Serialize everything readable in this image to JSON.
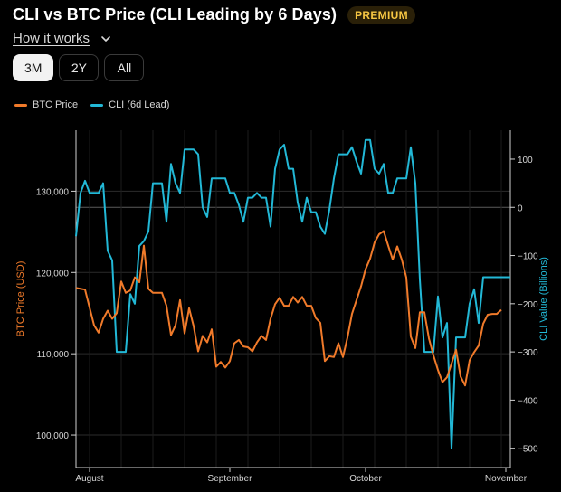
{
  "header": {
    "title": "CLI vs BTC Price (CLI Leading by 6 Days)",
    "badge": "PREMIUM",
    "how_it_works": "How it works"
  },
  "range": {
    "options": [
      "3M",
      "2Y",
      "All"
    ],
    "selected": "3M"
  },
  "colors": {
    "btc": "#f07a2a",
    "cli": "#22b8d6",
    "grid": "#2b2b2b",
    "axis": "#d0d0d0",
    "zero_line": "#5a5a5a"
  },
  "chart_data": {
    "type": "line",
    "title": "CLI vs BTC Price (CLI Leading by 6 Days)",
    "x_unit": "days since Jul 29",
    "x_ticks": [
      {
        "label": "August",
        "x": 3
      },
      {
        "label": "September",
        "x": 34
      },
      {
        "label": "October",
        "x": 64
      },
      {
        "label": "November",
        "x": 95
      }
    ],
    "xlim": [
      0,
      96
    ],
    "left_axis": {
      "label": "BTC Price (USD)",
      "ylim": [
        96000,
        137500
      ],
      "ticks": [
        100000,
        110000,
        120000,
        130000
      ],
      "tick_labels": [
        "100,000",
        "110,000",
        "120,000",
        "130,000"
      ]
    },
    "right_axis": {
      "label": "CLI Value (Billions)",
      "ylim": [
        -540,
        160
      ],
      "ticks": [
        -500,
        -400,
        -300,
        -200,
        -100,
        0,
        100
      ],
      "tick_labels": [
        "−500",
        "−400",
        "−300",
        "−200",
        "−100",
        "0",
        "100"
      ]
    },
    "series": [
      {
        "name": "BTC Price",
        "axis": "left",
        "x": [
          0,
          2,
          4,
          5,
          6,
          7,
          8,
          9,
          10,
          11,
          12,
          13,
          14,
          15,
          16,
          17,
          18,
          19,
          20,
          21,
          22,
          23,
          24,
          25,
          26,
          27,
          28,
          29,
          30,
          31,
          32,
          33,
          34,
          35,
          36,
          37,
          38,
          39,
          40,
          41,
          42,
          43,
          44,
          45,
          46,
          47,
          48,
          49,
          50,
          51,
          52,
          53,
          54,
          55,
          56,
          57,
          58,
          59,
          60,
          61,
          62,
          63,
          64,
          65,
          66,
          67,
          68,
          69,
          70,
          71,
          72,
          73,
          74,
          75,
          76,
          77,
          78,
          79,
          80,
          81,
          82,
          83,
          84,
          85,
          86,
          87,
          88,
          89,
          90,
          91,
          92,
          93,
          94
        ],
        "values": [
          118100,
          117900,
          113500,
          112600,
          114300,
          115300,
          114300,
          115000,
          118900,
          117500,
          117800,
          119400,
          118800,
          123300,
          118000,
          117500,
          117500,
          117500,
          115900,
          112300,
          113500,
          116600,
          112500,
          115600,
          113400,
          110300,
          112200,
          111400,
          113000,
          108400,
          109000,
          108300,
          109100,
          111300,
          111700,
          110900,
          110800,
          110300,
          111400,
          112200,
          111700,
          114300,
          116100,
          116900,
          115900,
          115900,
          117000,
          116300,
          117000,
          115900,
          115900,
          114400,
          113800,
          109100,
          109700,
          109600,
          111300,
          109600,
          112000,
          114900,
          116600,
          118300,
          120400,
          121700,
          123700,
          124700,
          125100,
          123300,
          121600,
          123200,
          121600,
          119400,
          112100,
          110700,
          115100,
          115100,
          111900,
          109800,
          108000,
          106500,
          107100,
          108800,
          110500,
          107200,
          106100,
          109200,
          110200,
          111000,
          113700,
          114800,
          114900,
          114900,
          115400
        ]
      },
      {
        "name": "CLI (6d Lead)",
        "axis": "right",
        "x": [
          0,
          1,
          2,
          3,
          4,
          5,
          6,
          7,
          8,
          9,
          10,
          11,
          12,
          13,
          14,
          15,
          16,
          17,
          18,
          19,
          20,
          21,
          22,
          23,
          24,
          25,
          26,
          27,
          28,
          29,
          30,
          31,
          32,
          33,
          34,
          35,
          36,
          37,
          38,
          39,
          40,
          41,
          42,
          43,
          44,
          45,
          46,
          47,
          48,
          49,
          50,
          51,
          52,
          53,
          54,
          55,
          56,
          57,
          58,
          59,
          60,
          61,
          62,
          63,
          64,
          65,
          66,
          67,
          68,
          69,
          70,
          71,
          72,
          73,
          74,
          75,
          76,
          77,
          78,
          79,
          80,
          81,
          82,
          83,
          84,
          85,
          86,
          87,
          88,
          89,
          90,
          91,
          92,
          93,
          94,
          95,
          96
        ],
        "values": [
          -60,
          30,
          55,
          30,
          30,
          30,
          50,
          -90,
          -110,
          -300,
          -300,
          -300,
          -180,
          -200,
          -80,
          -70,
          -50,
          50,
          50,
          50,
          -30,
          90,
          50,
          30,
          120,
          120,
          120,
          110,
          0,
          -20,
          60,
          60,
          60,
          60,
          30,
          30,
          5,
          -30,
          20,
          20,
          30,
          20,
          20,
          -40,
          80,
          120,
          130,
          80,
          80,
          10,
          -30,
          20,
          -10,
          -10,
          -40,
          -55,
          -5,
          60,
          110,
          110,
          110,
          125,
          95,
          70,
          140,
          140,
          80,
          70,
          90,
          30,
          30,
          60,
          60,
          60,
          125,
          50,
          -150,
          -300,
          -300,
          -300,
          -185,
          -270,
          -240,
          -500,
          -270,
          -270,
          -270,
          -200,
          -170,
          -240,
          -145,
          -145,
          -145,
          -145,
          -145,
          -145,
          -145
        ]
      }
    ]
  }
}
